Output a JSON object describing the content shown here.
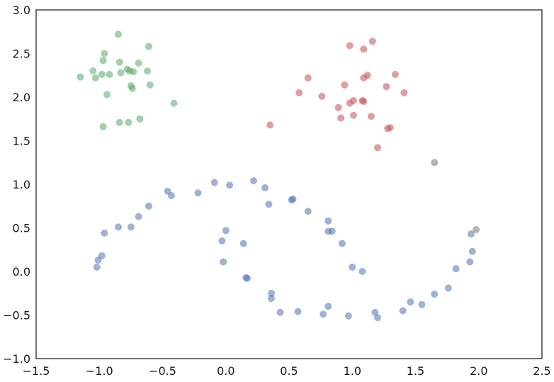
{
  "chart_data": {
    "type": "scatter",
    "title": "",
    "xlabel": "",
    "ylabel": "",
    "xlim": [
      -1.5,
      2.5
    ],
    "ylim": [
      -1.0,
      3.0
    ],
    "xticks": [
      "−1.5",
      "−1.0",
      "−0.5",
      "0.0",
      "0.5",
      "1.0",
      "1.5",
      "2.0",
      "2.5"
    ],
    "xtick_values": [
      -1.5,
      -1.0,
      -0.5,
      0.0,
      0.5,
      1.0,
      1.5,
      2.0,
      2.5
    ],
    "yticks": [
      "−1.0",
      "−0.5",
      "0.0",
      "0.5",
      "1.0",
      "1.5",
      "2.0",
      "2.5",
      "3.0"
    ],
    "ytick_values": [
      -1.0,
      -0.5,
      0.0,
      0.5,
      1.0,
      1.5,
      2.0,
      2.5,
      3.0
    ],
    "grid": false,
    "legend": false,
    "series": [
      {
        "color": "#4c72b0",
        "opacity": 0.55,
        "points": [
          [
            -1.02,
            0.05
          ],
          [
            -1.01,
            0.13
          ],
          [
            -0.98,
            0.18
          ],
          [
            -0.96,
            0.44
          ],
          [
            -0.85,
            0.51
          ],
          [
            -0.75,
            0.51
          ],
          [
            -0.69,
            0.63
          ],
          [
            -0.61,
            0.75
          ],
          [
            -0.46,
            0.92
          ],
          [
            -0.43,
            0.87
          ],
          [
            -0.22,
            0.9
          ],
          [
            -0.09,
            1.02
          ],
          [
            0.03,
            0.99
          ],
          [
            0.22,
            1.04
          ],
          [
            0.31,
            0.96
          ],
          [
            0.34,
            0.77
          ],
          [
            0.52,
            0.82
          ],
          [
            0.53,
            0.83
          ],
          [
            0.65,
            0.69
          ],
          [
            0.81,
            0.58
          ],
          [
            0.81,
            0.46
          ],
          [
            0.84,
            0.46
          ],
          [
            0.92,
            0.32
          ],
          [
            0.0,
            0.47
          ],
          [
            -0.03,
            0.35
          ],
          [
            -0.02,
            0.11
          ],
          [
            0.14,
            0.32
          ],
          [
            0.16,
            -0.07
          ],
          [
            0.17,
            -0.08
          ],
          [
            0.36,
            -0.25
          ],
          [
            0.36,
            -0.31
          ],
          [
            0.43,
            -0.47
          ],
          [
            0.57,
            -0.46
          ],
          [
            0.77,
            -0.49
          ],
          [
            0.81,
            -0.4
          ],
          [
            0.97,
            -0.51
          ],
          [
            1.0,
            0.05
          ],
          [
            1.08,
            0.0
          ],
          [
            1.18,
            -0.47
          ],
          [
            1.2,
            -0.53
          ],
          [
            1.4,
            -0.45
          ],
          [
            1.46,
            -0.35
          ],
          [
            1.55,
            -0.38
          ],
          [
            1.65,
            -0.26
          ],
          [
            1.76,
            -0.19
          ],
          [
            1.82,
            0.03
          ],
          [
            1.93,
            0.11
          ],
          [
            1.94,
            0.43
          ],
          [
            1.95,
            0.23
          ]
        ]
      },
      {
        "color": "#55a868",
        "opacity": 0.55,
        "points": [
          [
            -1.15,
            2.23
          ],
          [
            -1.05,
            2.3
          ],
          [
            -1.03,
            2.22
          ],
          [
            -0.98,
            2.26
          ],
          [
            -0.97,
            2.42
          ],
          [
            -0.96,
            2.5
          ],
          [
            -0.92,
            2.26
          ],
          [
            -0.94,
            2.03
          ],
          [
            -0.85,
            2.72
          ],
          [
            -0.84,
            2.4
          ],
          [
            -0.83,
            2.28
          ],
          [
            -0.78,
            2.32
          ],
          [
            -0.76,
            2.3
          ],
          [
            -0.75,
            2.13
          ],
          [
            -0.74,
            2.1
          ],
          [
            -0.73,
            2.29
          ],
          [
            -0.69,
            2.39
          ],
          [
            -0.62,
            2.3
          ],
          [
            -0.61,
            2.58
          ],
          [
            -0.6,
            2.14
          ],
          [
            -0.84,
            1.71
          ],
          [
            -0.77,
            1.71
          ],
          [
            -0.68,
            1.75
          ],
          [
            -0.97,
            1.66
          ],
          [
            -0.41,
            1.93
          ]
        ]
      },
      {
        "color": "#c44e52",
        "opacity": 0.55,
        "points": [
          [
            0.35,
            1.68
          ],
          [
            0.58,
            2.05
          ],
          [
            0.65,
            2.22
          ],
          [
            0.76,
            2.01
          ],
          [
            0.89,
            1.88
          ],
          [
            0.91,
            1.76
          ],
          [
            0.94,
            2.14
          ],
          [
            0.98,
            1.93
          ],
          [
            0.98,
            2.59
          ],
          [
            1.01,
            1.96
          ],
          [
            1.01,
            1.79
          ],
          [
            1.08,
            1.96
          ],
          [
            1.09,
            1.95
          ],
          [
            1.09,
            2.22
          ],
          [
            1.09,
            2.55
          ],
          [
            1.12,
            2.25
          ],
          [
            1.15,
            1.78
          ],
          [
            1.16,
            2.64
          ],
          [
            1.2,
            1.42
          ],
          [
            1.27,
            2.12
          ],
          [
            1.28,
            1.64
          ],
          [
            1.3,
            1.65
          ],
          [
            1.34,
            2.26
          ],
          [
            1.41,
            2.05
          ]
        ]
      },
      {
        "color": "#8c8c8c",
        "opacity": 0.65,
        "points": [
          [
            1.65,
            1.25
          ],
          [
            1.98,
            0.48
          ]
        ]
      }
    ]
  }
}
